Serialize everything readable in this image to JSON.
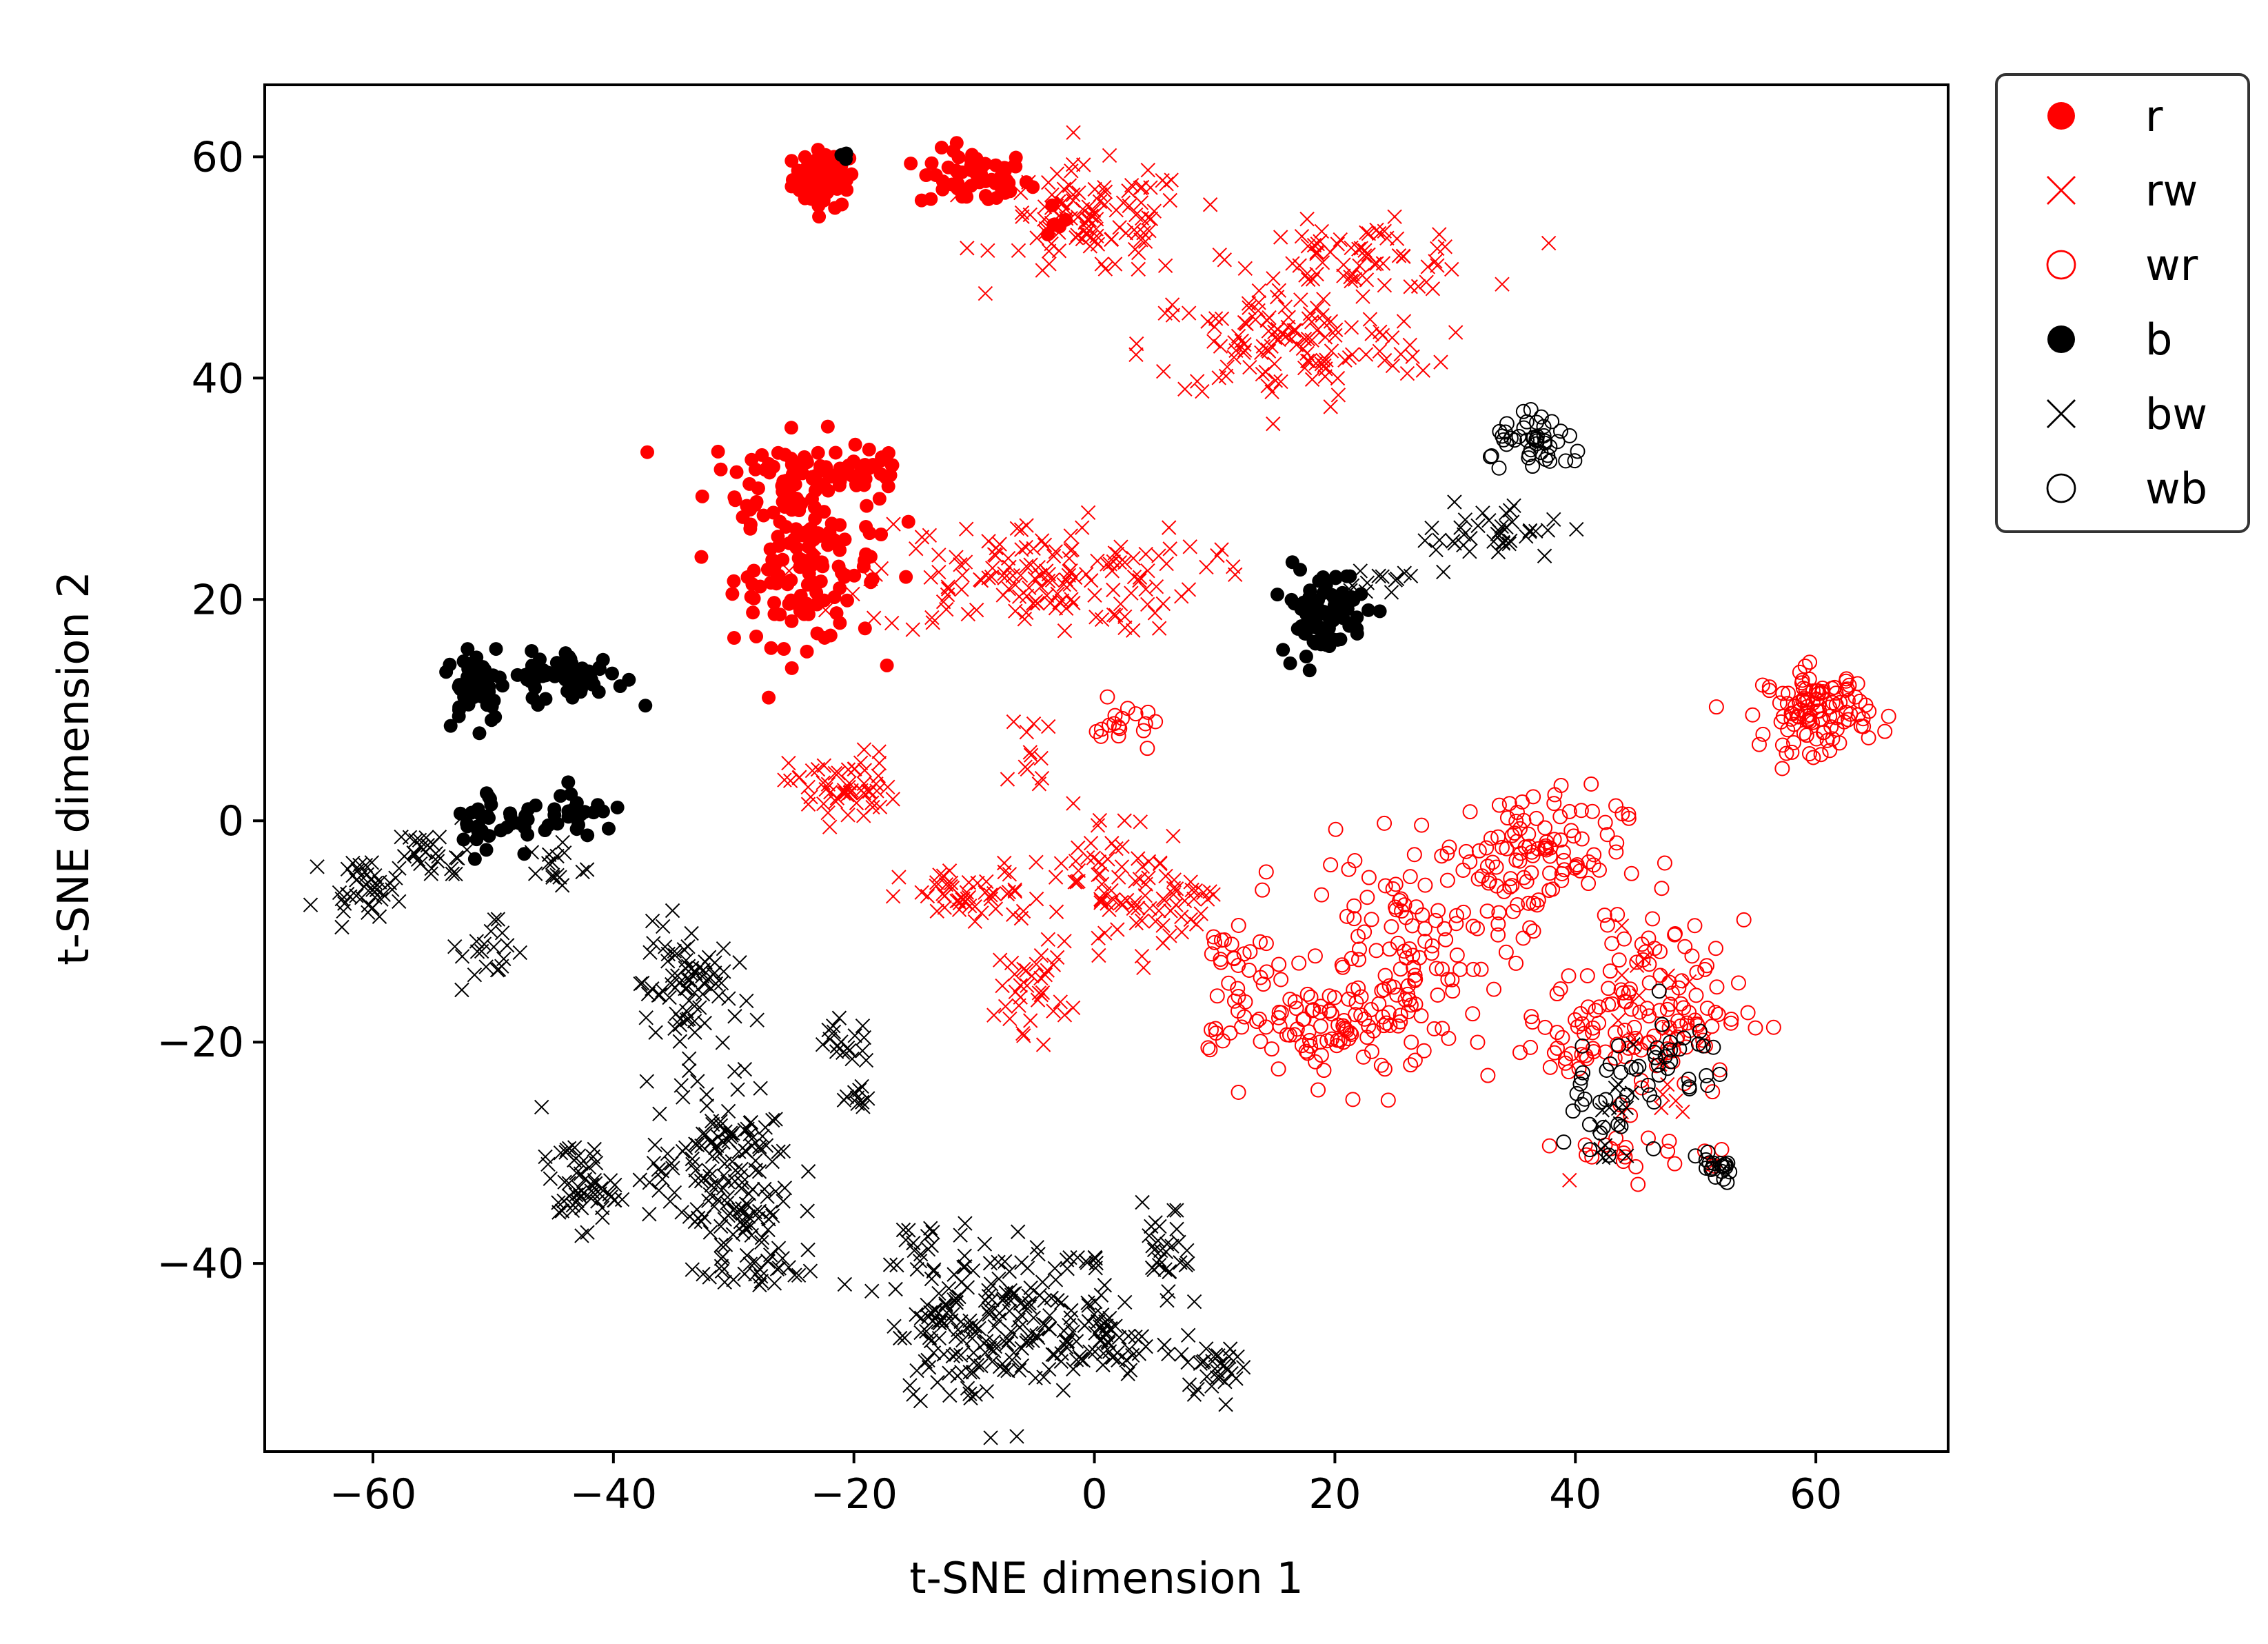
{
  "colors": {
    "red": "#ff0000",
    "black": "#000000",
    "frame": "#000000",
    "background": "#ffffff"
  },
  "chart_data": {
    "type": "scatter",
    "title": "",
    "xlabel": "t-SNE dimension 1",
    "ylabel": "t-SNE dimension 2",
    "xlim": [
      -69,
      71
    ],
    "ylim": [
      -57,
      66.5
    ],
    "x_ticks": [
      -60,
      -40,
      -20,
      0,
      20,
      40,
      60
    ],
    "y_ticks": [
      -40,
      -20,
      0,
      20,
      40,
      60
    ],
    "x_tick_labels": [
      "−60",
      "−40",
      "−20",
      "0",
      "20",
      "40",
      "60"
    ],
    "y_tick_labels": [
      "−40",
      "−20",
      "0",
      "20",
      "40",
      "60"
    ],
    "grid": false,
    "legend_position": "outside-top-right",
    "series": [
      {
        "name": "r",
        "marker": "filled-circle",
        "color": "#ff0000",
        "clusters": [
          {
            "cx": -22.5,
            "cy": 58,
            "sx": 1.3,
            "sy": 1.3,
            "n": 70
          },
          {
            "cx": -10,
            "cy": 58,
            "sx": 2.3,
            "sy": 1.3,
            "n": 60
          },
          {
            "cx": -4,
            "cy": 55,
            "sx": 1.5,
            "sy": 1.2,
            "n": 6
          },
          {
            "cx": -25,
            "cy": 31,
            "sx": 3.5,
            "sy": 2.0,
            "n": 70
          },
          {
            "cx": -24,
            "cy": 23,
            "sx": 3.0,
            "sy": 3.5,
            "n": 130
          },
          {
            "cx": -19,
            "cy": 32,
            "sx": 1.8,
            "sy": 1.5,
            "n": 25
          }
        ]
      },
      {
        "name": "rw",
        "marker": "x",
        "color": "#ff0000",
        "clusters": [
          {
            "cx": 0,
            "cy": 54,
            "sx": 4,
            "sy": 2.5,
            "n": 110
          },
          {
            "cx": 22,
            "cy": 51,
            "sx": 5,
            "sy": 1.5,
            "n": 70
          },
          {
            "cx": 16,
            "cy": 43,
            "sx": 6,
            "sy": 2.5,
            "n": 120
          },
          {
            "cx": -5,
            "cy": 22,
            "sx": 7,
            "sy": 2.5,
            "n": 150
          },
          {
            "cx": -21,
            "cy": 3,
            "sx": 2.2,
            "sy": 1.6,
            "n": 55
          },
          {
            "cx": -10,
            "cy": -7,
            "sx": 3,
            "sy": 1.3,
            "n": 50
          },
          {
            "cx": -5,
            "cy": -15,
            "sx": 1.5,
            "sy": 2,
            "n": 35
          },
          {
            "cx": 0,
            "cy": -5,
            "sx": 2.5,
            "sy": 3,
            "n": 45
          },
          {
            "cx": 5,
            "cy": -7,
            "sx": 2,
            "sy": 2,
            "n": 35
          },
          {
            "cx": -5,
            "cy": 5,
            "sx": 1,
            "sy": 2.5,
            "n": 12
          },
          {
            "cx": 9,
            "cy": -7,
            "sx": 2,
            "sy": 1.2,
            "n": 12
          },
          {
            "cx": 48,
            "cy": -22,
            "sx": 3,
            "sy": 6,
            "n": 20
          }
        ]
      },
      {
        "name": "wr",
        "marker": "open-circle",
        "color": "#ff0000",
        "clusters": [
          {
            "cx": 60,
            "cy": 10,
            "sx": 2.2,
            "sy": 1.8,
            "n": 110
          },
          {
            "cx": 2.5,
            "cy": 8.5,
            "sx": 1.3,
            "sy": 1.2,
            "n": 18
          },
          {
            "cx": 12,
            "cy": -15,
            "sx": 2,
            "sy": 4,
            "n": 40
          },
          {
            "cx": 20,
            "cy": -19,
            "sx": 4,
            "sy": 2.5,
            "n": 80
          },
          {
            "cx": 26,
            "cy": -12,
            "sx": 4,
            "sy": 4.5,
            "n": 110
          },
          {
            "cx": 36,
            "cy": -3,
            "sx": 4,
            "sy": 3,
            "n": 110
          },
          {
            "cx": 46,
            "cy": -17,
            "sx": 4,
            "sy": 4,
            "n": 120
          },
          {
            "cx": 40,
            "cy": -20,
            "sx": 2.5,
            "sy": 1.5,
            "n": 20
          },
          {
            "cx": 47,
            "cy": -30,
            "sx": 3.5,
            "sy": 1.2,
            "n": 20
          }
        ]
      },
      {
        "name": "b",
        "marker": "filled-circle",
        "color": "#000000",
        "clusters": [
          {
            "cx": -21,
            "cy": 59.5,
            "sx": 0.4,
            "sy": 1.2,
            "n": 3
          },
          {
            "cx": -51.5,
            "cy": 12.5,
            "sx": 1.2,
            "sy": 1.8,
            "n": 55
          },
          {
            "cx": -43,
            "cy": 13,
            "sx": 2,
            "sy": 1.2,
            "n": 50
          },
          {
            "cx": -47,
            "cy": 13,
            "sx": 2,
            "sy": 0.6,
            "n": 12
          },
          {
            "cx": -49,
            "cy": 0,
            "sx": 2.5,
            "sy": 1.6,
            "n": 40
          },
          {
            "cx": -43,
            "cy": 1,
            "sx": 1.5,
            "sy": 1,
            "n": 20
          },
          {
            "cx": 19,
            "cy": 19,
            "sx": 1.8,
            "sy": 2,
            "n": 80
          }
        ]
      },
      {
        "name": "bw",
        "marker": "x",
        "color": "#000000",
        "clusters": [
          {
            "cx": -61,
            "cy": -6,
            "sx": 1.5,
            "sy": 1.2,
            "n": 40
          },
          {
            "cx": -55,
            "cy": -3,
            "sx": 1.5,
            "sy": 1.2,
            "n": 30
          },
          {
            "cx": -50,
            "cy": -12,
            "sx": 1.3,
            "sy": 2,
            "n": 20
          },
          {
            "cx": -45,
            "cy": -4,
            "sx": 1.5,
            "sy": 1,
            "n": 15
          },
          {
            "cx": -43,
            "cy": -33,
            "sx": 1.5,
            "sy": 2,
            "n": 55
          },
          {
            "cx": -34,
            "cy": -15,
            "sx": 1.8,
            "sy": 3,
            "n": 80
          },
          {
            "cx": -31,
            "cy": -32,
            "sx": 3,
            "sy": 4,
            "n": 150
          },
          {
            "cx": -28,
            "cy": -40,
            "sx": 2,
            "sy": 1.5,
            "n": 30
          },
          {
            "cx": -21,
            "cy": -20,
            "sx": 1.2,
            "sy": 1,
            "n": 20
          },
          {
            "cx": -19.5,
            "cy": -25,
            "sx": 0.6,
            "sy": 0.5,
            "n": 10
          },
          {
            "cx": -9,
            "cy": -45,
            "sx": 4,
            "sy": 3.5,
            "n": 190
          },
          {
            "cx": -15,
            "cy": -38,
            "sx": 1,
            "sy": 2,
            "n": 12
          },
          {
            "cx": 1,
            "cy": -47,
            "sx": 2,
            "sy": 2,
            "n": 55
          },
          {
            "cx": 10,
            "cy": -49,
            "sx": 1.5,
            "sy": 1.2,
            "n": 30
          },
          {
            "cx": 6,
            "cy": -40,
            "sx": 1,
            "sy": 2.5,
            "n": 30
          },
          {
            "cx": -1,
            "cy": -40,
            "sx": 0.8,
            "sy": 0.5,
            "n": 10
          },
          {
            "cx": 33,
            "cy": 26,
            "sx": 3,
            "sy": 1.5,
            "n": 40
          },
          {
            "cx": 24,
            "cy": 22,
            "sx": 2,
            "sy": 0.5,
            "n": 12
          },
          {
            "cx": 44,
            "cy": -27,
            "sx": 1,
            "sy": 2.5,
            "n": 15
          }
        ]
      },
      {
        "name": "wb",
        "marker": "open-circle",
        "color": "#000000",
        "clusters": [
          {
            "cx": 37,
            "cy": 34,
            "sx": 2,
            "sy": 1.2,
            "n": 45
          },
          {
            "cx": 48,
            "cy": -22,
            "sx": 2.5,
            "sy": 2,
            "n": 30
          },
          {
            "cx": 51.5,
            "cy": -31.5,
            "sx": 1.2,
            "sy": 0.6,
            "n": 20
          },
          {
            "cx": 42,
            "cy": -27,
            "sx": 2,
            "sy": 4,
            "n": 25
          }
        ]
      }
    ]
  }
}
